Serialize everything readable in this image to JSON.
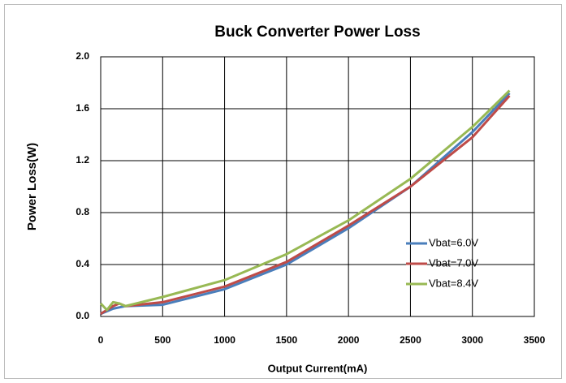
{
  "chart_data": {
    "type": "line",
    "title": "Buck Converter Power Loss",
    "xlabel": "Output Current(mA)",
    "ylabel": "Power Loss(W)",
    "x": [
      0,
      50,
      100,
      150,
      200,
      500,
      1000,
      1500,
      2000,
      2500,
      3000,
      3300
    ],
    "series": [
      {
        "name": "Vbat=6.0V",
        "color": "#4a7ebb",
        "values": [
          0.02,
          0.04,
          0.06,
          0.07,
          0.08,
          0.09,
          0.21,
          0.4,
          0.68,
          1.0,
          1.42,
          1.72
        ]
      },
      {
        "name": "Vbat=7.0V",
        "color": "#be4b48",
        "values": [
          0.02,
          0.05,
          0.08,
          0.1,
          0.08,
          0.11,
          0.23,
          0.42,
          0.7,
          1.0,
          1.38,
          1.7
        ]
      },
      {
        "name": "Vbat=8.4V",
        "color": "#98b954",
        "values": [
          0.1,
          0.05,
          0.11,
          0.1,
          0.08,
          0.15,
          0.28,
          0.48,
          0.74,
          1.06,
          1.46,
          1.74
        ]
      }
    ],
    "xlim": [
      0,
      3500
    ],
    "xticks": [
      0,
      500,
      1000,
      1500,
      2000,
      2500,
      3000,
      3500
    ],
    "ylim": [
      0,
      2
    ],
    "yticks": [
      {
        "value": 0,
        "label": "0.0"
      },
      0.4,
      0.8,
      1.2,
      1.6,
      {
        "value": 2,
        "label": "2.0"
      }
    ],
    "grid": true,
    "legend": "right"
  }
}
